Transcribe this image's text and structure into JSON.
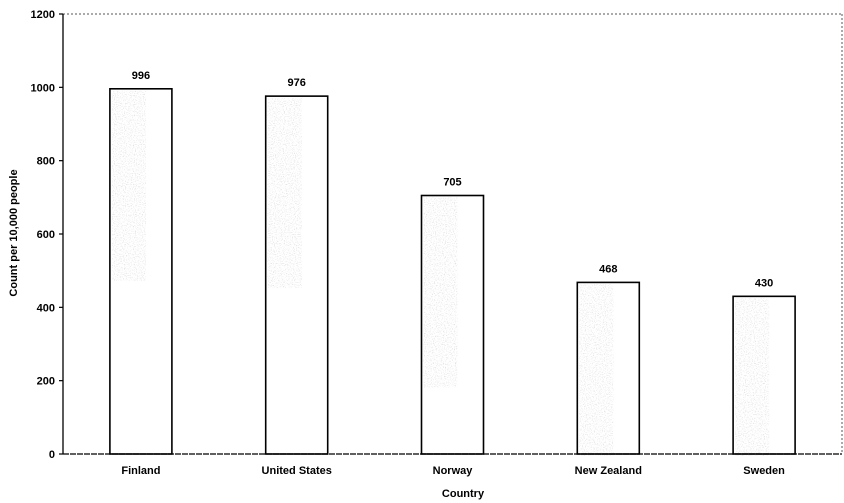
{
  "chart_data": {
    "type": "bar",
    "title": "",
    "xlabel": "Country",
    "ylabel": "Count per 10,000 people",
    "categories": [
      "Finland",
      "United States",
      "Norway",
      "New Zealand",
      "Sweden"
    ],
    "values": [
      996,
      976,
      705,
      468,
      430
    ],
    "data_labels": [
      "996",
      "976",
      "705",
      "468",
      "430"
    ],
    "ylim": [
      0,
      1200
    ],
    "yticks": [
      0,
      200,
      400,
      600,
      800,
      1000,
      1200
    ],
    "grid": false,
    "legend": "none",
    "colors": {
      "bar_fill": "#ffffff",
      "bar_stroke": "#000000",
      "bar_texture": "#b8b8b8",
      "axis": "#000000"
    }
  }
}
